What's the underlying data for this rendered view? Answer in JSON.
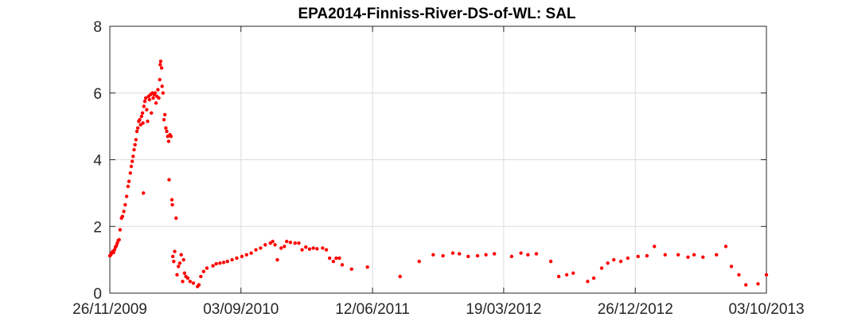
{
  "chart_data": {
    "type": "scatter",
    "title": "EPA2014-Finniss-River-DS-of-WL: SAL",
    "xlabel": "",
    "ylabel": "",
    "x_axis_type": "date",
    "xlim": [
      "2009-11-26",
      "2013-10-03"
    ],
    "ylim": [
      0,
      8
    ],
    "x_ticks": [
      "2009-11-26",
      "2010-09-03",
      "2011-06-12",
      "2012-03-19",
      "2012-12-26",
      "2013-10-03"
    ],
    "x_tick_labels": [
      "26/11/2009",
      "03/09/2010",
      "12/06/2011",
      "19/03/2012",
      "26/12/2012",
      "03/10/2013"
    ],
    "y_ticks": [
      0,
      2,
      4,
      6,
      8
    ],
    "y_tick_labels": [
      "0",
      "2",
      "4",
      "6",
      "8"
    ],
    "grid": true,
    "marker_color": "#ff0000",
    "series": [
      {
        "points": [
          [
            "2009-11-26",
            1.12
          ],
          [
            "2009-11-28",
            1.15
          ],
          [
            "2009-11-30",
            1.2
          ],
          [
            "2009-12-02",
            1.25
          ],
          [
            "2009-12-04",
            1.22
          ],
          [
            "2009-12-06",
            1.3
          ],
          [
            "2009-12-08",
            1.38
          ],
          [
            "2009-12-10",
            1.42
          ],
          [
            "2009-12-12",
            1.5
          ],
          [
            "2009-12-14",
            1.58
          ],
          [
            "2009-12-16",
            1.6
          ],
          [
            "2009-12-18",
            1.9
          ],
          [
            "2009-12-21",
            2.25
          ],
          [
            "2009-12-23",
            2.3
          ],
          [
            "2009-12-26",
            2.45
          ],
          [
            "2009-12-29",
            2.65
          ],
          [
            "2010-01-01",
            2.9
          ],
          [
            "2010-01-04",
            3.2
          ],
          [
            "2010-01-06",
            3.35
          ],
          [
            "2010-01-09",
            3.6
          ],
          [
            "2010-01-11",
            3.8
          ],
          [
            "2010-01-13",
            3.95
          ],
          [
            "2010-01-15",
            4.1
          ],
          [
            "2010-01-17",
            4.3
          ],
          [
            "2010-01-19",
            4.45
          ],
          [
            "2010-01-21",
            4.6
          ],
          [
            "2010-01-23",
            4.85
          ],
          [
            "2010-01-25",
            4.95
          ],
          [
            "2010-01-27",
            5.15
          ],
          [
            "2010-01-29",
            5.2
          ],
          [
            "2010-01-31",
            5.05
          ],
          [
            "2010-02-02",
            5.3
          ],
          [
            "2010-02-04",
            5.4
          ],
          [
            "2010-02-05",
            5.1
          ],
          [
            "2010-02-06",
            3.0
          ],
          [
            "2010-02-07",
            5.6
          ],
          [
            "2010-02-09",
            5.75
          ],
          [
            "2010-02-11",
            5.85
          ],
          [
            "2010-02-13",
            5.5
          ],
          [
            "2010-02-15",
            5.15
          ],
          [
            "2010-02-17",
            5.9
          ],
          [
            "2010-02-19",
            5.8
          ],
          [
            "2010-02-21",
            5.95
          ],
          [
            "2010-02-23",
            5.4
          ],
          [
            "2010-02-25",
            6.0
          ],
          [
            "2010-02-27",
            5.85
          ],
          [
            "2010-03-01",
            5.95
          ],
          [
            "2010-03-03",
            6.0
          ],
          [
            "2010-03-05",
            5.7
          ],
          [
            "2010-03-07",
            5.9
          ],
          [
            "2010-03-09",
            6.1
          ],
          [
            "2010-03-11",
            5.85
          ],
          [
            "2010-03-13",
            6.4
          ],
          [
            "2010-03-14",
            6.85
          ],
          [
            "2010-03-15",
            6.95
          ],
          [
            "2010-03-17",
            6.75
          ],
          [
            "2010-03-18",
            6.2
          ],
          [
            "2010-03-20",
            6.0
          ],
          [
            "2010-03-22",
            5.2
          ],
          [
            "2010-03-24",
            5.35
          ],
          [
            "2010-03-26",
            4.95
          ],
          [
            "2010-03-28",
            4.85
          ],
          [
            "2010-03-30",
            4.7
          ],
          [
            "2010-04-01",
            4.55
          ],
          [
            "2010-04-02",
            3.4
          ],
          [
            "2010-04-04",
            4.75
          ],
          [
            "2010-04-06",
            4.7
          ],
          [
            "2010-04-08",
            2.8
          ],
          [
            "2010-04-09",
            2.65
          ],
          [
            "2010-04-10",
            1.1
          ],
          [
            "2010-04-12",
            0.95
          ],
          [
            "2010-04-14",
            1.25
          ],
          [
            "2010-04-17",
            2.25
          ],
          [
            "2010-04-19",
            0.55
          ],
          [
            "2010-04-22",
            0.8
          ],
          [
            "2010-04-25",
            0.9
          ],
          [
            "2010-04-28",
            1.15
          ],
          [
            "2010-05-01",
            0.35
          ],
          [
            "2010-05-03",
            1.0
          ],
          [
            "2010-05-05",
            0.6
          ],
          [
            "2010-05-08",
            0.5
          ],
          [
            "2010-05-12",
            0.45
          ],
          [
            "2010-05-17",
            0.35
          ],
          [
            "2010-05-24",
            0.3
          ],
          [
            "2010-06-02",
            0.2
          ],
          [
            "2010-06-05",
            0.25
          ],
          [
            "2010-06-09",
            0.5
          ],
          [
            "2010-06-15",
            0.65
          ],
          [
            "2010-06-22",
            0.75
          ],
          [
            "2010-07-05",
            0.82
          ],
          [
            "2010-07-12",
            0.88
          ],
          [
            "2010-07-20",
            0.9
          ],
          [
            "2010-07-28",
            0.92
          ],
          [
            "2010-08-05",
            0.95
          ],
          [
            "2010-08-15",
            1.0
          ],
          [
            "2010-08-25",
            1.05
          ],
          [
            "2010-09-05",
            1.1
          ],
          [
            "2010-09-15",
            1.15
          ],
          [
            "2010-09-25",
            1.2
          ],
          [
            "2010-10-05",
            1.3
          ],
          [
            "2010-10-15",
            1.35
          ],
          [
            "2010-10-25",
            1.45
          ],
          [
            "2010-11-05",
            1.5
          ],
          [
            "2010-11-10",
            1.55
          ],
          [
            "2010-11-15",
            1.45
          ],
          [
            "2010-11-20",
            1.0
          ],
          [
            "2010-11-28",
            1.35
          ],
          [
            "2010-12-05",
            1.4
          ],
          [
            "2010-12-10",
            1.55
          ],
          [
            "2010-12-18",
            1.52
          ],
          [
            "2010-12-28",
            1.5
          ],
          [
            "2011-01-05",
            1.5
          ],
          [
            "2011-01-12",
            1.3
          ],
          [
            "2011-01-20",
            1.38
          ],
          [
            "2011-01-28",
            1.32
          ],
          [
            "2011-02-05",
            1.35
          ],
          [
            "2011-02-13",
            1.33
          ],
          [
            "2011-02-25",
            1.35
          ],
          [
            "2011-03-05",
            1.3
          ],
          [
            "2011-03-12",
            1.05
          ],
          [
            "2011-03-20",
            0.95
          ],
          [
            "2011-03-26",
            1.05
          ],
          [
            "2011-04-02",
            1.05
          ],
          [
            "2011-04-08",
            0.85
          ],
          [
            "2011-04-28",
            0.72
          ],
          [
            "2011-06-01",
            0.78
          ],
          [
            "2011-08-10",
            0.5
          ],
          [
            "2011-09-20",
            0.95
          ],
          [
            "2011-10-20",
            1.15
          ],
          [
            "2011-11-10",
            1.12
          ],
          [
            "2011-12-01",
            1.2
          ],
          [
            "2011-12-15",
            1.18
          ],
          [
            "2012-01-03",
            1.1
          ],
          [
            "2012-01-23",
            1.12
          ],
          [
            "2012-02-10",
            1.15
          ],
          [
            "2012-02-28",
            1.18
          ],
          [
            "2012-04-05",
            1.1
          ],
          [
            "2012-04-25",
            1.2
          ],
          [
            "2012-05-10",
            1.15
          ],
          [
            "2012-05-28",
            1.18
          ],
          [
            "2012-06-28",
            0.95
          ],
          [
            "2012-07-15",
            0.5
          ],
          [
            "2012-08-01",
            0.55
          ],
          [
            "2012-08-15",
            0.6
          ],
          [
            "2012-09-15",
            0.35
          ],
          [
            "2012-09-28",
            0.45
          ],
          [
            "2012-10-15",
            0.75
          ],
          [
            "2012-10-28",
            0.9
          ],
          [
            "2012-11-10",
            1.0
          ],
          [
            "2012-11-25",
            0.95
          ],
          [
            "2012-12-10",
            1.05
          ],
          [
            "2013-01-01",
            1.1
          ],
          [
            "2013-01-20",
            1.12
          ],
          [
            "2013-02-05",
            1.4
          ],
          [
            "2013-02-28",
            1.15
          ],
          [
            "2013-03-28",
            1.15
          ],
          [
            "2013-04-18",
            1.08
          ],
          [
            "2013-05-01",
            1.15
          ],
          [
            "2013-05-20",
            1.08
          ],
          [
            "2013-06-18",
            1.15
          ],
          [
            "2013-07-08",
            1.4
          ],
          [
            "2013-07-20",
            0.8
          ],
          [
            "2013-08-05",
            0.55
          ],
          [
            "2013-08-20",
            0.25
          ],
          [
            "2013-09-15",
            0.28
          ],
          [
            "2013-10-03",
            0.55
          ]
        ]
      }
    ]
  }
}
